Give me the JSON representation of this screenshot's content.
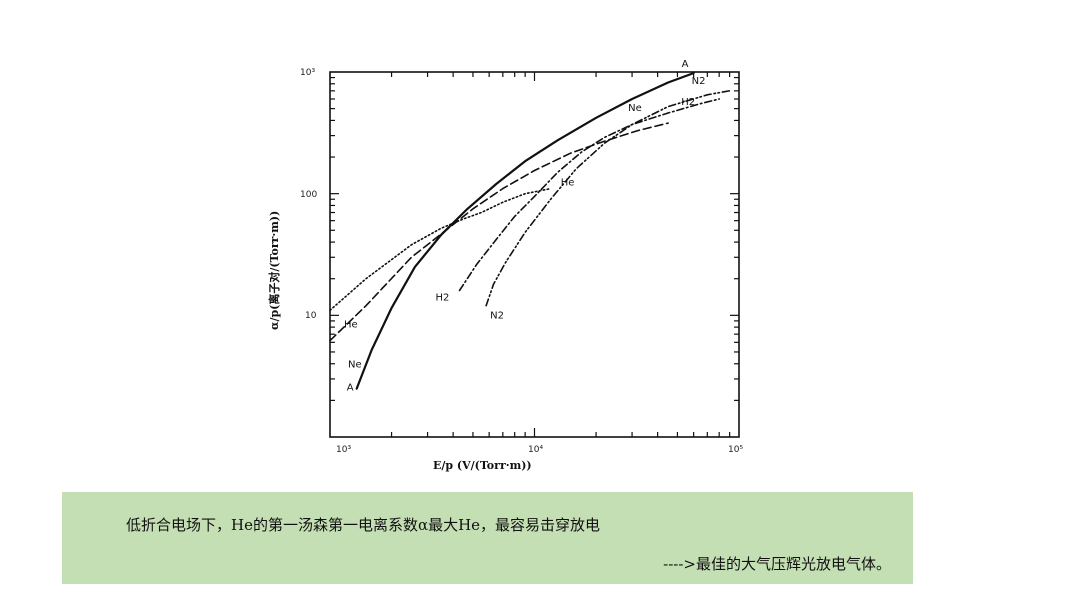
{
  "chart_data": {
    "type": "line",
    "title": "",
    "xlabel": "E/p (V/(Torr·m))",
    "ylabel": "α/p(离子对/(Torr·m))",
    "x_scale": "log",
    "y_scale": "log",
    "xlim": [
      1000,
      100000
    ],
    "ylim": [
      1,
      1000
    ],
    "grid": false,
    "x_ticks": [
      "10³",
      "10⁴",
      "10⁵"
    ],
    "y_ticks": [
      "10³",
      "100",
      "10"
    ],
    "series": [
      {
        "name": "A",
        "style": "solid",
        "x": [
          1350,
          1600,
          2000,
          2600,
          3500,
          4700,
          6500,
          9000,
          13000,
          20000,
          30000,
          45000,
          60000
        ],
        "y": [
          2.5,
          5.2,
          11.5,
          25,
          46,
          75,
          120,
          185,
          275,
          420,
          600,
          820,
          980
        ]
      },
      {
        "name": "Ne",
        "style": "dashed",
        "x": [
          1000,
          1500,
          2500,
          3800,
          5000,
          7000,
          10000,
          15000,
          22000,
          32000,
          45000
        ],
        "y": [
          6.2,
          12,
          30,
          52,
          75,
          110,
          155,
          215,
          270,
          330,
          380
        ]
      },
      {
        "name": "He",
        "style": "dotted",
        "x": [
          1000,
          1500,
          2500,
          3500,
          4500,
          5500,
          7000,
          9000,
          12000
        ],
        "y": [
          11,
          20,
          38,
          52,
          62,
          70,
          85,
          100,
          110
        ]
      },
      {
        "name": "H2",
        "style": "dash-dot",
        "x": [
          4300,
          5200,
          6500,
          8000,
          10000,
          13000,
          17000,
          22000,
          30000,
          45000,
          65000,
          80000
        ],
        "y": [
          16,
          26,
          42,
          65,
          95,
          150,
          220,
          290,
          370,
          460,
          550,
          600
        ]
      },
      {
        "name": "N2",
        "style": "dash-dot-dot",
        "x": [
          5800,
          6300,
          7200,
          9000,
          12000,
          16000,
          22000,
          30000,
          45000,
          70000,
          90000
        ],
        "y": [
          12,
          18,
          27,
          48,
          90,
          160,
          260,
          370,
          520,
          650,
          700
        ]
      }
    ],
    "series_labels": [
      {
        "text": "A",
        "series": "A",
        "end": "low"
      },
      {
        "text": "A",
        "series": "A",
        "end": "high"
      },
      {
        "text": "Ne",
        "series": "Ne",
        "end": "low"
      },
      {
        "text": "Ne",
        "series": "Ne",
        "end": "high"
      },
      {
        "text": "He",
        "series": "He",
        "end": "low"
      },
      {
        "text": "He",
        "series": "He",
        "end": "high"
      },
      {
        "text": "H2",
        "series": "H2",
        "end": "low"
      },
      {
        "text": "H2",
        "series": "H2",
        "end": "high"
      },
      {
        "text": "N2",
        "series": "N2",
        "end": "low"
      },
      {
        "text": "N2",
        "series": "N2",
        "end": "high"
      }
    ]
  },
  "caption": {
    "line1": "低折合电场下，He的第一汤森第一电离系数α最大He，最容易击穿放电",
    "line2": "---->最佳的大气压辉光放电气体。",
    "background": "#c5dfb4"
  }
}
